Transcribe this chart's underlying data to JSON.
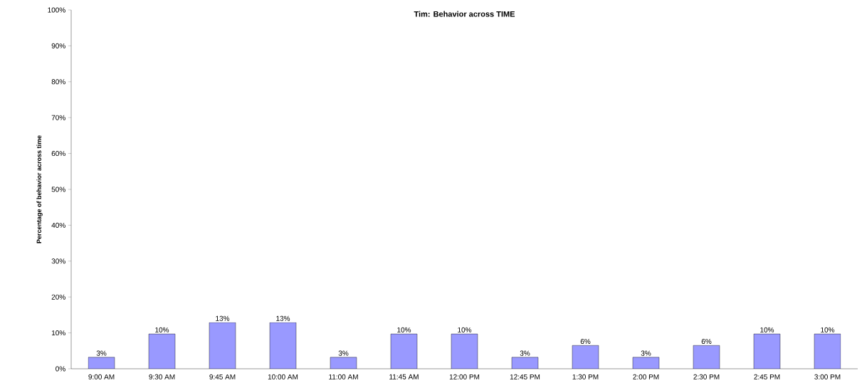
{
  "chart_data": {
    "type": "bar",
    "title": "Tim: Behavior across TIME",
    "ylabel": "Percentage of behavior across time",
    "categories": [
      "9:00 AM",
      "9:30 AM",
      "9:45 AM",
      "10:00 AM",
      "11:00 AM",
      "11:45 AM",
      "12:00 PM",
      "12:45 PM",
      "1:30 PM",
      "2:00 PM",
      "2:30 PM",
      "2:45 PM",
      "3:00 PM"
    ],
    "values": [
      3.2,
      9.7,
      12.9,
      12.9,
      3.2,
      9.7,
      9.7,
      3.2,
      6.5,
      3.2,
      6.5,
      9.7,
      9.7
    ],
    "value_labels": [
      "3%",
      "10%",
      "13%",
      "13%",
      "3%",
      "10%",
      "10%",
      "3%",
      "6%",
      "3%",
      "6%",
      "10%",
      "10%"
    ],
    "color": "#9999ff",
    "ylim": [
      0,
      100
    ],
    "yticks": [
      {
        "value": 0,
        "label": "0%"
      },
      {
        "value": 10,
        "label": "10%"
      },
      {
        "value": 20,
        "label": "20%"
      },
      {
        "value": 30,
        "label": "30%"
      },
      {
        "value": 40,
        "label": "40%"
      },
      {
        "value": 50,
        "label": "50%"
      },
      {
        "value": 60,
        "label": "60%"
      },
      {
        "value": 70,
        "label": "70%"
      },
      {
        "value": 80,
        "label": "80%"
      },
      {
        "value": 90,
        "label": "90%"
      },
      {
        "value": 100,
        "label": "100%"
      }
    ],
    "grid": false
  }
}
